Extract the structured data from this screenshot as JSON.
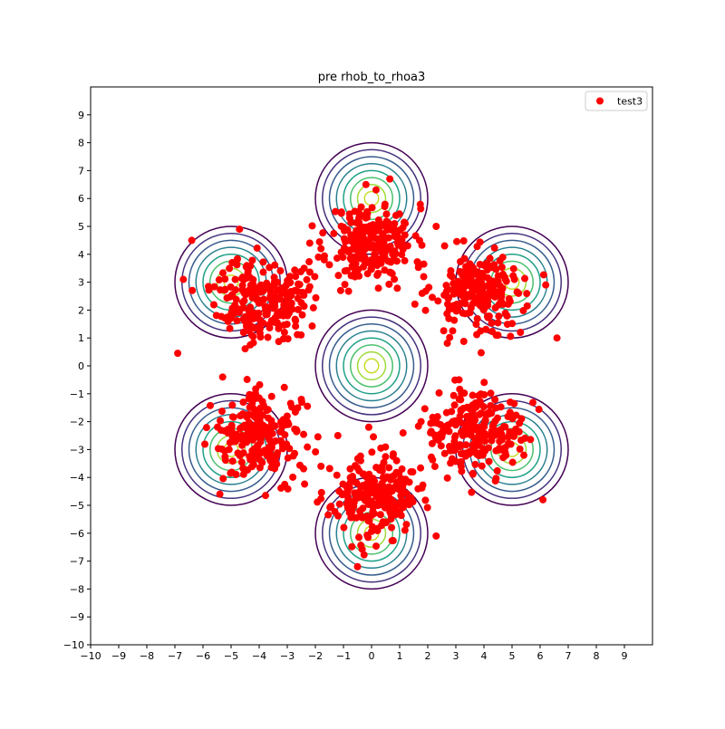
{
  "chart_data": {
    "type": "scatter",
    "title": "pre rhob_to_rhoa3",
    "xlabel": "",
    "ylabel": "",
    "xlim": [
      -10,
      10
    ],
    "ylim": [
      -10,
      10
    ],
    "xticks": [
      -10,
      -9,
      -8,
      -7,
      -6,
      -5,
      -4,
      -3,
      -2,
      -1,
      0,
      1,
      2,
      3,
      4,
      5,
      6,
      7,
      8,
      9
    ],
    "yticks": [
      -10,
      -9,
      -8,
      -7,
      -6,
      -5,
      -4,
      -3,
      -2,
      -1,
      0,
      1,
      2,
      3,
      4,
      5,
      6,
      7,
      8,
      9
    ],
    "grid": false,
    "legend": {
      "position": "top-right",
      "entries": [
        {
          "label": "test3",
          "color": "#ff0000",
          "marker": "circle"
        }
      ]
    },
    "contours": {
      "description_free": true,
      "centers": [
        [
          0,
          0
        ],
        [
          0,
          6
        ],
        [
          0,
          -6
        ],
        [
          5,
          3
        ],
        [
          5,
          -3
        ],
        [
          -5,
          3
        ],
        [
          -5,
          -3
        ]
      ],
      "level_radii": [
        2.0,
        1.75,
        1.5,
        1.25,
        1.0,
        0.75,
        0.5,
        0.25
      ],
      "colors": [
        "#440154",
        "#46327e",
        "#365c8d",
        "#277f8e",
        "#1fa187",
        "#4ac16d",
        "#a0da39",
        "#c8dc28"
      ]
    },
    "series": [
      {
        "name": "test3",
        "color": "#ff0000",
        "clusters": [
          {
            "center": [
              0.0,
              4.4
            ],
            "spread": [
              0.75,
              0.7
            ],
            "count": 230,
            "seed": 11
          },
          {
            "center": [
              0.1,
              -4.7
            ],
            "spread": [
              0.75,
              0.7
            ],
            "count": 230,
            "seed": 23
          },
          {
            "center": [
              -3.9,
              2.4
            ],
            "spread": [
              0.8,
              0.75
            ],
            "count": 230,
            "seed": 37
          },
          {
            "center": [
              -4.0,
              -2.5
            ],
            "spread": [
              0.8,
              0.75
            ],
            "count": 230,
            "seed": 41
          },
          {
            "center": [
              3.8,
              2.6
            ],
            "spread": [
              0.85,
              0.75
            ],
            "count": 220,
            "seed": 53
          },
          {
            "center": [
              3.6,
              -2.5
            ],
            "spread": [
              0.85,
              0.75
            ],
            "count": 220,
            "seed": 67
          }
        ],
        "outliers": [
          [
            -6.9,
            0.45
          ],
          [
            -6.4,
            4.5
          ],
          [
            -6.7,
            3.1
          ],
          [
            -2.2,
            4.4
          ],
          [
            -1.8,
            4.2
          ],
          [
            -2.4,
            3.5
          ],
          [
            2.3,
            5.0
          ],
          [
            2.6,
            4.3
          ],
          [
            6.6,
            1.0
          ],
          [
            6.2,
            2.9
          ],
          [
            -4.7,
            4.9
          ],
          [
            -0.2,
            6.5
          ],
          [
            0.65,
            6.7
          ],
          [
            2.3,
            -6.1
          ],
          [
            -0.5,
            -7.2
          ],
          [
            6.1,
            -4.8
          ],
          [
            -0.1,
            -2.2
          ],
          [
            -3.1,
            1.2
          ],
          [
            -1.1,
            2.7
          ],
          [
            1.8,
            2.6
          ],
          [
            -2.5,
            -1.2
          ],
          [
            -1.2,
            -2.5
          ],
          [
            -1.8,
            -3.6
          ],
          [
            1.4,
            -3.8
          ],
          [
            -5.3,
            -0.4
          ],
          [
            4.5,
            1.1
          ],
          [
            5.3,
            1.2
          ],
          [
            3.2,
            -1.0
          ],
          [
            2.1,
            -2.4
          ],
          [
            -5.4,
            -4.6
          ]
        ]
      }
    ]
  }
}
